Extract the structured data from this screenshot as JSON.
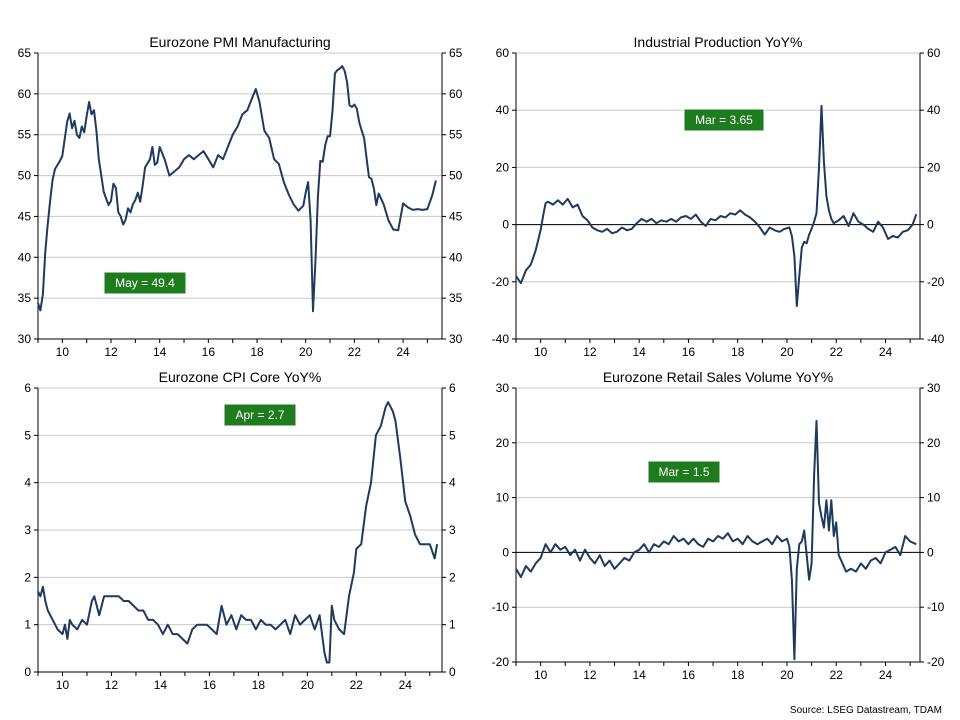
{
  "source": "Source: LSEG Datastream, TDAM",
  "chart_data": [
    {
      "type": "line",
      "title": "Eurozone PMI Manufacturing",
      "xlabel": "",
      "ylabel": "",
      "xlim": [
        2009.0,
        2025.6
      ],
      "x_ticks": [
        10,
        12,
        14,
        16,
        18,
        20,
        22,
        24
      ],
      "ylim": [
        30,
        65
      ],
      "y_ticks": [
        30,
        35,
        40,
        45,
        50,
        55,
        60,
        65
      ],
      "zero_line": false,
      "grid": true,
      "line_color": "#1f3a5f",
      "annotation": {
        "text": "May  = 49.4",
        "color": "#1e7b1e",
        "text_color": "#ffffff"
      },
      "series": [
        {
          "x": [
            2009.0,
            2009.1,
            2009.2,
            2009.3,
            2009.4,
            2009.5,
            2009.6,
            2009.7,
            2009.8,
            2009.9,
            2010.0,
            2010.2,
            2010.3,
            2010.4,
            2010.5,
            2010.6,
            2010.7,
            2010.8,
            2010.9,
            2011.0,
            2011.1,
            2011.2,
            2011.3,
            2011.4,
            2011.5,
            2011.6,
            2011.7,
            2011.8,
            2011.9,
            2012.0,
            2012.1,
            2012.2,
            2012.3,
            2012.4,
            2012.5,
            2012.6,
            2012.7,
            2012.8,
            2012.9,
            2013.0,
            2013.1,
            2013.2,
            2013.3,
            2013.4,
            2013.5,
            2013.6,
            2013.7,
            2013.8,
            2013.9,
            2014.0,
            2014.2,
            2014.4,
            2014.6,
            2014.8,
            2015.0,
            2015.2,
            2015.4,
            2015.6,
            2015.8,
            2016.0,
            2016.2,
            2016.4,
            2016.6,
            2016.8,
            2017.0,
            2017.2,
            2017.4,
            2017.6,
            2017.8,
            2017.95,
            2018.1,
            2018.3,
            2018.5,
            2018.7,
            2018.9,
            2019.1,
            2019.3,
            2019.5,
            2019.7,
            2019.9,
            2020.0,
            2020.1,
            2020.2,
            2020.3,
            2020.4,
            2020.5,
            2020.6,
            2020.7,
            2020.8,
            2020.9,
            2021.0,
            2021.1,
            2021.2,
            2021.3,
            2021.4,
            2021.5,
            2021.6,
            2021.7,
            2021.8,
            2021.9,
            2022.0,
            2022.1,
            2022.2,
            2022.3,
            2022.4,
            2022.5,
            2022.6,
            2022.7,
            2022.8,
            2022.9,
            2023.0,
            2023.2,
            2023.4,
            2023.6,
            2023.8,
            2024.0,
            2024.2,
            2024.4,
            2024.6,
            2024.8,
            2025.0,
            2025.2,
            2025.35
          ],
          "y": [
            34.4,
            33.5,
            35.5,
            40.7,
            44.0,
            47.0,
            49.5,
            50.8,
            51.3,
            51.8,
            52.4,
            56.6,
            57.6,
            55.8,
            56.7,
            55.0,
            54.6,
            56.0,
            55.3,
            57.3,
            59.0,
            57.5,
            58.0,
            55.5,
            52.0,
            50.0,
            48.0,
            47.2,
            46.4,
            46.9,
            49.0,
            48.5,
            45.5,
            45.0,
            44.0,
            44.6,
            46.0,
            45.5,
            46.5,
            47.0,
            47.9,
            46.8,
            48.8,
            51.0,
            51.5,
            52.0,
            53.5,
            51.3,
            51.6,
            53.5,
            52.0,
            50.0,
            50.5,
            51.0,
            52.0,
            52.5,
            52.0,
            52.5,
            53.0,
            52.0,
            51.0,
            52.5,
            52.0,
            53.5,
            55.0,
            56.0,
            57.5,
            58.0,
            59.5,
            60.6,
            59.0,
            55.5,
            54.6,
            52.0,
            51.4,
            49.2,
            47.7,
            46.5,
            45.7,
            46.3,
            47.9,
            49.2,
            44.5,
            33.4,
            39.4,
            47.4,
            51.8,
            51.7,
            53.7,
            54.8,
            54.8,
            57.9,
            62.5,
            62.9,
            63.1,
            63.4,
            62.8,
            61.4,
            58.6,
            58.4,
            58.7,
            58.2,
            56.5,
            55.5,
            54.6,
            52.1,
            49.8,
            49.6,
            48.4,
            46.4,
            47.8,
            46.5,
            44.5,
            43.4,
            43.3,
            46.6,
            46.1,
            45.8,
            45.9,
            45.8,
            45.9,
            47.6,
            49.4
          ]
        }
      ]
    },
    {
      "type": "line",
      "title": "Industrial Production YoY%",
      "xlabel": "",
      "ylabel": "",
      "xlim": [
        2009.0,
        2025.4
      ],
      "x_ticks": [
        10,
        12,
        14,
        16,
        18,
        20,
        22,
        24
      ],
      "ylim": [
        -40,
        60
      ],
      "y_ticks": [
        -40,
        -20,
        0,
        20,
        40,
        60
      ],
      "zero_line": true,
      "grid": true,
      "line_color": "#1f3a5f",
      "annotation": {
        "text": "Mar  = 3.65",
        "color": "#1e7b1e",
        "text_color": "#ffffff"
      },
      "series": [
        {
          "x": [
            2009.0,
            2009.2,
            2009.4,
            2009.6,
            2009.8,
            2010.0,
            2010.1,
            2010.2,
            2010.3,
            2010.5,
            2010.7,
            2010.9,
            2011.1,
            2011.3,
            2011.5,
            2011.7,
            2011.9,
            2012.1,
            2012.3,
            2012.5,
            2012.7,
            2012.9,
            2013.1,
            2013.3,
            2013.5,
            2013.7,
            2013.9,
            2014.1,
            2014.3,
            2014.5,
            2014.7,
            2014.9,
            2015.1,
            2015.3,
            2015.5,
            2015.7,
            2015.9,
            2016.1,
            2016.3,
            2016.5,
            2016.7,
            2016.9,
            2017.1,
            2017.3,
            2017.5,
            2017.7,
            2017.9,
            2018.1,
            2018.3,
            2018.5,
            2018.7,
            2018.9,
            2019.1,
            2019.3,
            2019.5,
            2019.7,
            2019.9,
            2020.1,
            2020.2,
            2020.3,
            2020.4,
            2020.5,
            2020.6,
            2020.7,
            2020.8,
            2020.9,
            2021.0,
            2021.1,
            2021.2,
            2021.3,
            2021.4,
            2021.5,
            2021.6,
            2021.7,
            2021.8,
            2021.9,
            2022.1,
            2022.3,
            2022.5,
            2022.7,
            2022.9,
            2023.1,
            2023.3,
            2023.5,
            2023.7,
            2023.9,
            2024.1,
            2024.3,
            2024.5,
            2024.7,
            2024.9,
            2025.1,
            2025.25
          ],
          "y": [
            -18.0,
            -20.5,
            -16.0,
            -14.0,
            -9.0,
            -2.0,
            3.0,
            7.5,
            8.0,
            7.0,
            8.5,
            7.0,
            9.0,
            6.0,
            7.0,
            3.0,
            1.5,
            -1.0,
            -2.0,
            -2.5,
            -1.5,
            -3.0,
            -2.5,
            -1.0,
            -2.0,
            -1.5,
            0.5,
            2.0,
            1.0,
            2.0,
            0.5,
            1.5,
            1.0,
            2.0,
            1.0,
            2.5,
            3.0,
            2.0,
            3.5,
            1.0,
            -0.5,
            2.0,
            1.5,
            3.0,
            2.5,
            4.0,
            3.5,
            5.0,
            3.5,
            2.5,
            1.0,
            -1.0,
            -3.5,
            -1.0,
            -2.0,
            -2.5,
            -1.5,
            -1.0,
            -4.0,
            -11.0,
            -28.5,
            -18.0,
            -8.0,
            -6.0,
            -6.5,
            -3.5,
            -1.5,
            1.0,
            4.0,
            20.0,
            41.5,
            22.0,
            10.0,
            5.0,
            2.0,
            0.5,
            1.5,
            3.0,
            -0.5,
            4.0,
            1.0,
            0.0,
            -1.5,
            -2.5,
            1.0,
            -1.0,
            -5.0,
            -4.0,
            -4.5,
            -2.5,
            -2.0,
            0.0,
            3.65
          ]
        }
      ]
    },
    {
      "type": "line",
      "title": "Eurozone CPI Core YoY%",
      "xlabel": "",
      "ylabel": "",
      "xlim": [
        2009.0,
        2025.5
      ],
      "x_ticks": [
        10,
        12,
        14,
        16,
        18,
        20,
        22,
        24
      ],
      "ylim": [
        0,
        6
      ],
      "y_ticks": [
        0,
        1,
        2,
        3,
        4,
        5,
        6
      ],
      "zero_line": false,
      "grid": true,
      "line_color": "#1f3a5f",
      "annotation": {
        "text": "Apr  = 2.7",
        "color": "#1e7b1e",
        "text_color": "#ffffff"
      },
      "series": [
        {
          "x": [
            2009.0,
            2009.1,
            2009.2,
            2009.3,
            2009.4,
            2009.6,
            2009.8,
            2010.0,
            2010.1,
            2010.2,
            2010.3,
            2010.4,
            2010.6,
            2010.8,
            2011.0,
            2011.2,
            2011.3,
            2011.5,
            2011.7,
            2011.9,
            2012.1,
            2012.3,
            2012.5,
            2012.7,
            2012.9,
            2013.1,
            2013.3,
            2013.5,
            2013.7,
            2013.9,
            2014.1,
            2014.3,
            2014.5,
            2014.7,
            2014.9,
            2015.1,
            2015.3,
            2015.5,
            2015.7,
            2015.9,
            2016.1,
            2016.3,
            2016.5,
            2016.7,
            2016.9,
            2017.1,
            2017.3,
            2017.5,
            2017.7,
            2017.9,
            2018.1,
            2018.3,
            2018.5,
            2018.7,
            2018.9,
            2019.1,
            2019.3,
            2019.5,
            2019.7,
            2019.9,
            2020.1,
            2020.3,
            2020.5,
            2020.7,
            2020.8,
            2020.9,
            2021.0,
            2021.1,
            2021.3,
            2021.5,
            2021.7,
            2021.9,
            2022.0,
            2022.2,
            2022.4,
            2022.6,
            2022.8,
            2023.0,
            2023.2,
            2023.3,
            2023.4,
            2023.5,
            2023.6,
            2023.8,
            2024.0,
            2024.2,
            2024.4,
            2024.6,
            2024.8,
            2025.0,
            2025.2,
            2025.3
          ],
          "y": [
            1.7,
            1.6,
            1.8,
            1.5,
            1.3,
            1.1,
            0.9,
            0.8,
            1.0,
            0.7,
            1.1,
            1.0,
            0.9,
            1.1,
            1.0,
            1.5,
            1.6,
            1.2,
            1.6,
            1.6,
            1.6,
            1.6,
            1.5,
            1.5,
            1.4,
            1.3,
            1.3,
            1.1,
            1.1,
            1.0,
            0.8,
            1.0,
            0.8,
            0.8,
            0.7,
            0.6,
            0.9,
            1.0,
            1.0,
            1.0,
            0.9,
            0.8,
            1.4,
            1.0,
            1.2,
            0.9,
            1.2,
            1.1,
            1.1,
            0.9,
            1.1,
            1.0,
            1.0,
            0.9,
            1.0,
            1.1,
            0.8,
            1.2,
            1.0,
            1.1,
            1.2,
            0.9,
            1.2,
            0.4,
            0.2,
            0.2,
            1.4,
            1.1,
            0.9,
            0.8,
            1.6,
            2.1,
            2.6,
            2.7,
            3.5,
            4.0,
            5.0,
            5.2,
            5.6,
            5.7,
            5.6,
            5.5,
            5.3,
            4.5,
            3.6,
            3.3,
            2.9,
            2.7,
            2.7,
            2.7,
            2.4,
            2.7
          ]
        }
      ]
    },
    {
      "type": "line",
      "title": "Eurozone Retail Sales Volume YoY%",
      "xlabel": "",
      "ylabel": "",
      "xlim": [
        2009.0,
        2025.4
      ],
      "x_ticks": [
        10,
        12,
        14,
        16,
        18,
        20,
        22,
        24
      ],
      "ylim": [
        -20,
        30
      ],
      "y_ticks": [
        -20,
        -10,
        0,
        10,
        20,
        30
      ],
      "zero_line": true,
      "grid": true,
      "line_color": "#1f3a5f",
      "annotation": {
        "text": "Mar  = 1.5",
        "color": "#1e7b1e",
        "text_color": "#ffffff"
      },
      "series": [
        {
          "x": [
            2009.0,
            2009.2,
            2009.4,
            2009.6,
            2009.8,
            2010.0,
            2010.2,
            2010.4,
            2010.6,
            2010.8,
            2011.0,
            2011.2,
            2011.4,
            2011.6,
            2011.8,
            2012.0,
            2012.2,
            2012.4,
            2012.6,
            2012.8,
            2013.0,
            2013.2,
            2013.4,
            2013.6,
            2013.8,
            2014.0,
            2014.2,
            2014.4,
            2014.6,
            2014.8,
            2015.0,
            2015.2,
            2015.4,
            2015.6,
            2015.8,
            2016.0,
            2016.2,
            2016.4,
            2016.6,
            2016.8,
            2017.0,
            2017.2,
            2017.4,
            2017.6,
            2017.8,
            2018.0,
            2018.2,
            2018.4,
            2018.6,
            2018.8,
            2019.0,
            2019.2,
            2019.4,
            2019.6,
            2019.8,
            2020.0,
            2020.1,
            2020.2,
            2020.3,
            2020.4,
            2020.5,
            2020.6,
            2020.7,
            2020.8,
            2020.9,
            2021.0,
            2021.1,
            2021.2,
            2021.3,
            2021.4,
            2021.5,
            2021.6,
            2021.7,
            2021.8,
            2021.9,
            2022.0,
            2022.1,
            2022.2,
            2022.4,
            2022.6,
            2022.8,
            2023.0,
            2023.2,
            2023.4,
            2023.6,
            2023.8,
            2024.0,
            2024.2,
            2024.4,
            2024.6,
            2024.8,
            2025.0,
            2025.25
          ],
          "y": [
            -3.0,
            -4.5,
            -2.5,
            -3.5,
            -2.0,
            -1.0,
            1.5,
            0.0,
            1.5,
            0.5,
            1.0,
            -0.5,
            0.5,
            -1.5,
            0.5,
            -1.0,
            -2.0,
            -0.5,
            -2.5,
            -1.5,
            -3.0,
            -2.0,
            -1.0,
            -1.5,
            0.0,
            0.5,
            1.5,
            0.0,
            1.5,
            1.0,
            2.0,
            1.5,
            3.0,
            2.0,
            2.5,
            1.5,
            2.5,
            1.5,
            1.0,
            2.5,
            2.0,
            3.0,
            2.5,
            3.5,
            2.0,
            2.5,
            1.5,
            3.0,
            2.0,
            1.5,
            2.0,
            2.5,
            1.5,
            3.0,
            2.0,
            2.5,
            1.0,
            -5.0,
            -19.5,
            -3.0,
            1.5,
            2.0,
            4.0,
            -0.5,
            -5.0,
            -2.0,
            14.0,
            24.0,
            9.0,
            6.5,
            4.5,
            9.5,
            4.0,
            9.5,
            3.0,
            5.5,
            -0.5,
            -1.5,
            -3.5,
            -3.0,
            -3.5,
            -2.0,
            -3.0,
            -1.5,
            -1.0,
            -2.0,
            0.0,
            0.5,
            1.0,
            -0.5,
            3.0,
            2.0,
            1.5
          ]
        }
      ]
    }
  ]
}
